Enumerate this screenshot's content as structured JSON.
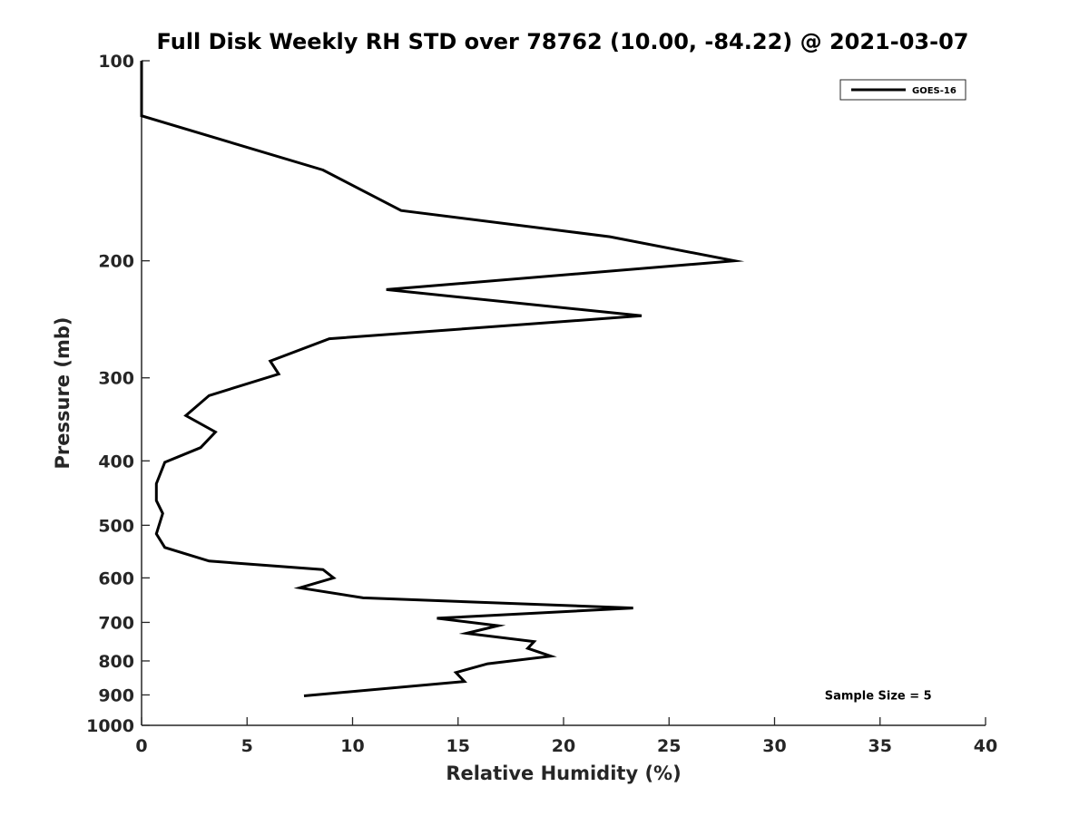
{
  "chart_data": {
    "type": "line",
    "title": "Full Disk Weekly RH STD over 78762 (10.00, -84.22) @ 2021-03-07",
    "xlabel": "Relative Humidity (%)",
    "ylabel": "Pressure (mb)",
    "xlim": [
      0,
      40
    ],
    "ylim": [
      100,
      1000
    ],
    "y_scale": "log",
    "y_reversed": true,
    "grid": false,
    "legend_position": "top-right",
    "x_ticks": [
      0,
      5,
      10,
      15,
      20,
      25,
      30,
      35,
      40
    ],
    "x_tick_labels": [
      "0",
      "5",
      "10",
      "15",
      "20",
      "25",
      "30",
      "35",
      "40"
    ],
    "y_ticks": [
      100,
      200,
      300,
      400,
      500,
      600,
      700,
      800,
      900,
      1000
    ],
    "y_tick_labels": [
      "100",
      "200",
      "300",
      "400",
      "500",
      "600",
      "700",
      "800",
      "900",
      "1000"
    ],
    "series": [
      {
        "name": "GOES-16",
        "color": "#000000",
        "x": [
          0,
          0,
          8.6,
          12.3,
          22.2,
          28.1,
          11.6,
          23.7,
          8.9,
          6.1,
          6.5,
          3.2,
          2.1,
          3.5,
          2.8,
          1.1,
          0.7,
          0.7,
          1.0,
          0.7,
          1.1,
          3.2,
          8.6,
          9.1,
          7.5,
          10.5,
          23.3,
          14.0,
          16.9,
          15.4,
          18.6,
          18.3,
          19.4,
          16.4,
          14.9,
          15.3,
          7.7
        ],
        "y": [
          100,
          121,
          146,
          168,
          184,
          200,
          221,
          242,
          262,
          283,
          296,
          319,
          342,
          362,
          382,
          402,
          433,
          459,
          480,
          515,
          540,
          566,
          583,
          600,
          621,
          643,
          666,
          690,
          708,
          727,
          748,
          766,
          787,
          808,
          833,
          859,
          903
        ]
      }
    ],
    "annotations": [
      {
        "text": "Sample Size = 5",
        "x": 35,
        "y": 900
      }
    ]
  }
}
